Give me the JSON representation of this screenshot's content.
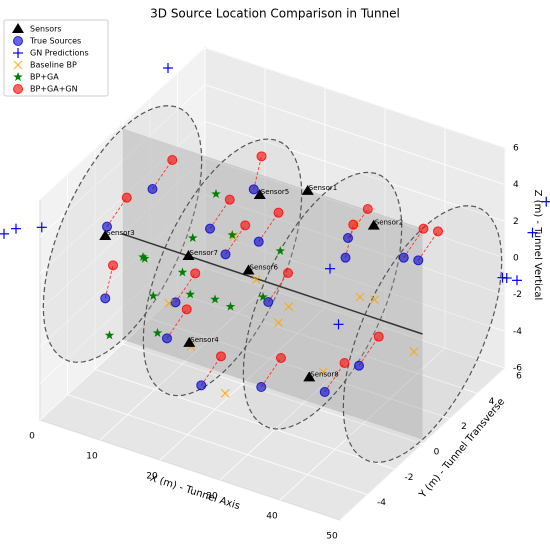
{
  "chart_data": {
    "type": "scatter3d",
    "title": "3D Source Location Comparison in Tunnel",
    "xlabel": "X (m) - Tunnel Axis",
    "ylabel": "Y (m) - Tunnel Transverse",
    "zlabel": "Z (m) - Tunnel Vertical",
    "xlim": [
      0,
      50
    ],
    "ylim": [
      -6,
      6
    ],
    "zlim": [
      -6,
      6
    ],
    "xticks": [
      0,
      10,
      20,
      30,
      40,
      50
    ],
    "yticks": [
      -4,
      -2,
      0,
      2,
      4,
      6
    ],
    "zticks": [
      -6,
      -4,
      -2,
      0,
      2,
      4,
      6
    ],
    "grid": true,
    "legend": "upper left",
    "series": [
      {
        "name": "Sensors",
        "marker": "triangle",
        "color": "#000000",
        "labels": [
          "Sensor1",
          "Sensor2",
          "Sensor3",
          "Sensor4",
          "Sensor5",
          "Sensor6",
          "Sensor7",
          "Sensor8"
        ],
        "x": [
          24,
          35,
          4,
          18,
          16,
          21,
          11,
          38
        ],
        "y": [
          3,
          3,
          -3,
          -3,
          3,
          0,
          0,
          -3
        ],
        "z": [
          2.9,
          2.2,
          2.4,
          -1.9,
          1.8,
          0.3,
          0,
          -1.6
        ]
      },
      {
        "name": "True Sources",
        "marker": "circle",
        "color": "#0000cc",
        "x": [
          2,
          5,
          4,
          10,
          12,
          15,
          18,
          22,
          25,
          28,
          30,
          33,
          36,
          40,
          44,
          47,
          20,
          8
        ],
        "y": [
          -2,
          0,
          -3,
          2,
          -2,
          3,
          -4,
          1,
          -1,
          4,
          -3,
          2,
          -1,
          3,
          -2,
          1,
          -3,
          4
        ],
        "z": [
          2,
          3,
          -1,
          0,
          -3,
          2,
          1,
          -2,
          3,
          -1,
          -3,
          2,
          -4,
          1,
          -1,
          3,
          -4,
          -3
        ]
      },
      {
        "name": "GN Predictions",
        "marker": "plus",
        "color": "#0000ff",
        "x": [
          -4,
          -6,
          -2,
          3,
          50,
          52,
          48,
          45,
          50,
          30,
          36
        ],
        "y": [
          -6,
          -6,
          -5,
          2,
          8,
          6,
          7,
          8,
          9,
          2,
          0
        ],
        "z": [
          4,
          3.5,
          3.6,
          8,
          0,
          -1,
          -2,
          -3,
          1,
          0,
          -1
        ]
      },
      {
        "name": "Baseline BP",
        "marker": "x",
        "color": "#ffa500",
        "x": [
          10,
          16,
          20,
          26,
          30,
          35,
          38,
          42,
          24,
          32,
          14,
          44
        ],
        "y": [
          -1,
          -2,
          1,
          0,
          -1,
          2,
          -2,
          0,
          -3,
          3,
          2,
          2
        ],
        "z": [
          -2,
          -3,
          -1,
          -2,
          0,
          -1,
          -2,
          1,
          -4,
          2,
          0,
          -3
        ]
      },
      {
        "name": "BP+GA",
        "marker": "star",
        "color": "#008000",
        "x": [
          6,
          8,
          10,
          12,
          14,
          16,
          7,
          18,
          20,
          11,
          24,
          28,
          9,
          15
        ],
        "y": [
          -1,
          -2,
          0,
          -3,
          -1,
          1,
          -4,
          0,
          -2,
          2,
          1,
          -2,
          1,
          -4
        ],
        "z": [
          0,
          1,
          -1,
          0,
          2,
          1,
          -2,
          -2,
          0,
          2,
          1,
          1,
          -3,
          -1
        ]
      },
      {
        "name": "BP+GA+GN",
        "marker": "circle",
        "color": "#ff0000",
        "x": [
          3,
          6,
          3,
          11,
          13,
          14,
          19,
          23,
          26,
          27,
          31,
          34,
          37,
          41,
          45,
          48,
          21,
          9
        ],
        "y": [
          -1,
          1,
          -2,
          3,
          -1,
          4,
          -3,
          2,
          0,
          5,
          -2,
          3,
          0,
          4,
          -1,
          2,
          -2,
          5
        ],
        "z": [
          3,
          4,
          0,
          1,
          -2,
          3,
          2,
          -1,
          4,
          0,
          -2,
          3,
          -3,
          2,
          0,
          4,
          -3,
          -2
        ]
      }
    ]
  }
}
